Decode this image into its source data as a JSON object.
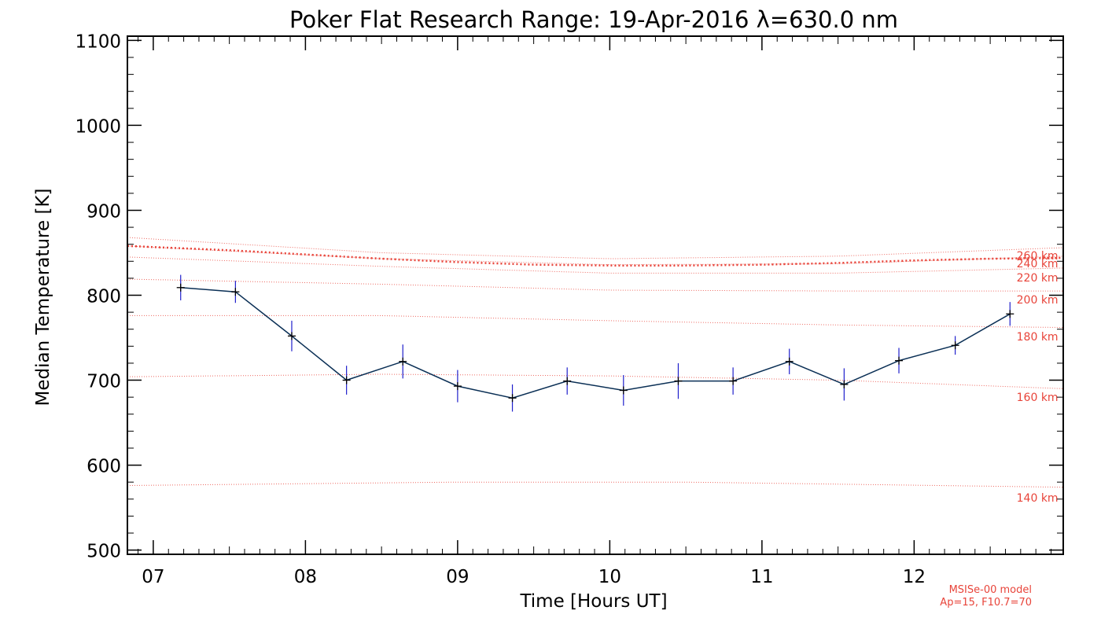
{
  "chart_data": {
    "type": "line",
    "title": "Poker Flat Research Range: 19-Apr-2016 λ=630.0 nm",
    "xlabel": "Time [Hours UT]",
    "ylabel": "Median Temperature [K]",
    "xlim": [
      6.83,
      12.98
    ],
    "ylim": [
      495,
      1105
    ],
    "x_tick_values": [
      7,
      8,
      9,
      10,
      11,
      12
    ],
    "x_tick_labels": [
      "07",
      "08",
      "09",
      "10",
      "11",
      "12"
    ],
    "y_tick_values": [
      500,
      600,
      700,
      800,
      900,
      1000,
      1100
    ],
    "y_tick_labels": [
      "500",
      "600",
      "700",
      "800",
      "900",
      "1000",
      "1100"
    ],
    "series": [
      {
        "name": "Median Temperature",
        "color": "#0a2f55",
        "marker_color": "#000000",
        "errorbar_color": "#2020cc",
        "x": [
          7.18,
          7.54,
          7.91,
          8.27,
          8.64,
          9.0,
          9.36,
          9.72,
          10.09,
          10.45,
          10.81,
          11.18,
          11.54,
          11.9,
          12.27,
          12.63
        ],
        "y": [
          809,
          804,
          752,
          700,
          722,
          693,
          679,
          699,
          688,
          699,
          699,
          722,
          695,
          723,
          741,
          778
        ],
        "err": [
          15,
          13,
          18,
          17,
          20,
          19,
          16,
          16,
          18,
          21,
          16,
          15,
          19,
          15,
          11,
          14
        ]
      }
    ],
    "msis_model": {
      "color": "#e8443a",
      "curves": [
        {
          "label": "140 km",
          "x": [
            6.83,
            9.0,
            10.5,
            12.98
          ],
          "y": [
            576,
            580,
            580,
            574
          ]
        },
        {
          "label": "160 km",
          "x": [
            6.83,
            8.5,
            10.0,
            11.5,
            12.98
          ],
          "y": [
            704,
            707,
            705,
            700,
            690
          ]
        },
        {
          "label": "180 km",
          "x": [
            6.83,
            8.5,
            10.0,
            11.5,
            12.98
          ],
          "y": [
            776,
            776,
            770,
            765,
            762
          ]
        },
        {
          "label": "200 km",
          "x": [
            6.83,
            8.5,
            10.0,
            11.5,
            12.98
          ],
          "y": [
            819,
            813,
            806,
            805,
            805
          ]
        },
        {
          "label": "220 km",
          "x": [
            6.83,
            8.5,
            10.0,
            11.5,
            12.98
          ],
          "y": [
            845,
            834,
            826,
            826,
            832
          ]
        },
        {
          "label": "240 km",
          "x": [
            6.83,
            8.5,
            10.0,
            11.5,
            12.98
          ],
          "y": [
            858,
            843,
            836,
            837,
            846
          ]
        },
        {
          "label": "260 km",
          "x": [
            6.83,
            8.5,
            10.0,
            11.5,
            12.98
          ],
          "y": [
            868,
            850,
            843,
            846,
            856
          ]
        }
      ],
      "model_curve": {
        "x": [
          6.83,
          7.5,
          8.0,
          8.5,
          9.0,
          9.5,
          10.0,
          10.5,
          11.0,
          11.5,
          12.0,
          12.5,
          12.98
        ],
        "y": [
          858,
          853,
          848,
          843,
          839,
          836,
          835,
          835,
          836,
          838,
          841,
          843,
          844
        ]
      },
      "note_line1": "MSISe-00 model",
      "note_line2": "Ap=15, F10.7=70"
    }
  }
}
